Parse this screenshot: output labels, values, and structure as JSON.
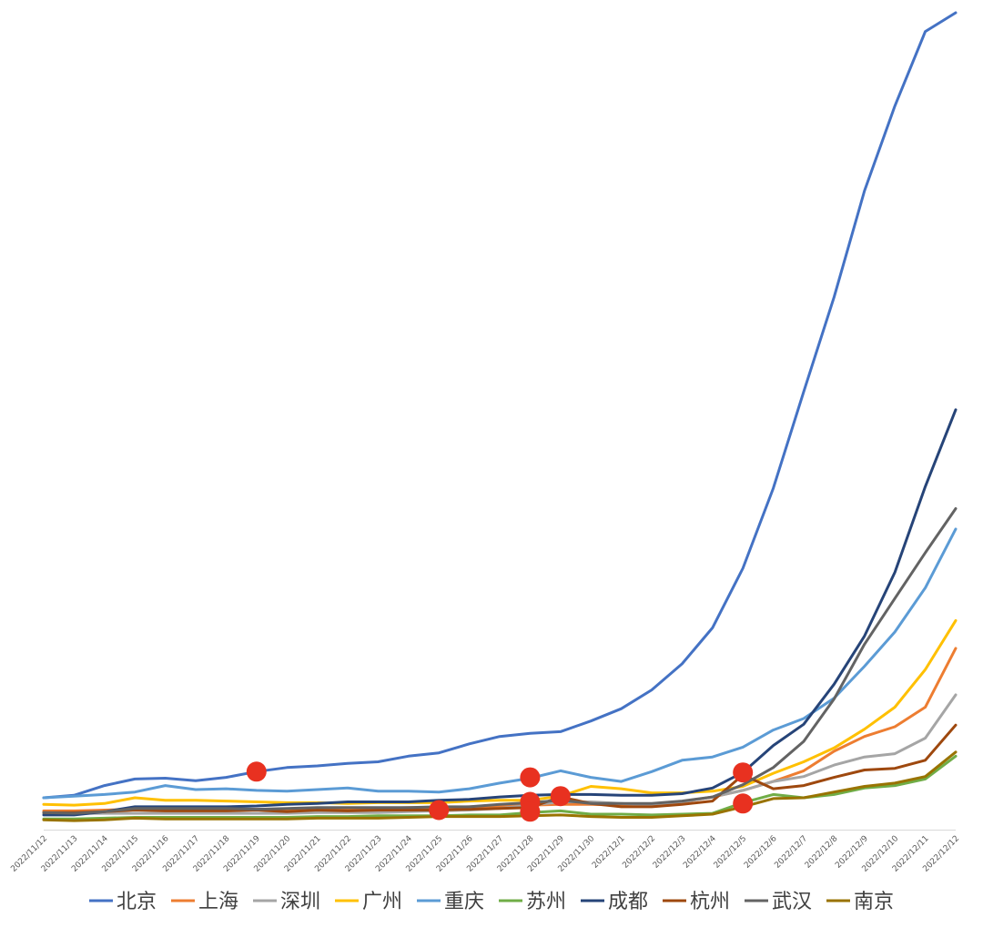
{
  "chart_data": {
    "type": "line",
    "title": "",
    "xlabel": "",
    "ylabel": "",
    "y_axis_visible": false,
    "grid": false,
    "legend_position": "bottom",
    "categories": [
      "2022/11/12",
      "2022/11/13",
      "2022/11/14",
      "2022/11/15",
      "2022/11/16",
      "2022/11/17",
      "2022/11/18",
      "2022/11/19",
      "2022/11/20",
      "2022/11/21",
      "2022/11/22",
      "2022/11/23",
      "2022/11/24",
      "2022/11/25",
      "2022/11/26",
      "2022/11/27",
      "2022/11/28",
      "2022/11/29",
      "2022/11/30",
      "2022/12/1",
      "2022/12/2",
      "2022/12/3",
      "2022/12/4",
      "2022/12/5",
      "2022/12/6",
      "2022/12/7",
      "2022/12/8",
      "2022/12/9",
      "2022/12/10",
      "2022/12/11",
      "2022/12/12"
    ],
    "ylim": [
      0,
      100
    ],
    "series": [
      {
        "name": "北京",
        "color": "#4472C4",
        "values": [
          3.9,
          4.2,
          5.4,
          6.2,
          6.3,
          6.0,
          6.4,
          7.1,
          7.6,
          7.8,
          8.1,
          8.3,
          9.0,
          9.4,
          10.5,
          11.4,
          11.8,
          12.0,
          13.3,
          14.8,
          17.1,
          20.3,
          24.7,
          32.0,
          41.8,
          53.6,
          65.2,
          78.2,
          88.6,
          97.7,
          100.0
        ]
      },
      {
        "name": "上海",
        "color": "#ED7D31",
        "values": [
          2.3,
          2.3,
          2.4,
          2.5,
          2.5,
          2.5,
          2.5,
          2.5,
          2.5,
          2.6,
          2.6,
          2.6,
          2.7,
          2.7,
          2.8,
          2.9,
          3.0,
          3.1,
          3.1,
          3.0,
          3.0,
          3.4,
          4.0,
          4.8,
          5.9,
          7.2,
          9.6,
          11.4,
          12.6,
          15.0,
          22.2
        ]
      },
      {
        "name": "深圳",
        "color": "#A5A5A5",
        "values": [
          2.0,
          2.0,
          2.0,
          2.0,
          2.0,
          2.0,
          2.0,
          2.0,
          2.0,
          2.1,
          2.1,
          2.1,
          2.2,
          2.3,
          2.4,
          2.6,
          3.0,
          3.4,
          3.4,
          3.2,
          3.0,
          3.4,
          4.0,
          4.8,
          5.9,
          6.5,
          7.9,
          8.9,
          9.3,
          11.2,
          16.5
        ]
      },
      {
        "name": "广州",
        "color": "#FFC000",
        "values": [
          3.1,
          3.0,
          3.2,
          3.9,
          3.6,
          3.6,
          3.5,
          3.4,
          3.3,
          3.3,
          3.2,
          3.3,
          3.3,
          3.3,
          3.5,
          3.6,
          3.6,
          4.1,
          5.3,
          5.0,
          4.5,
          4.5,
          4.7,
          5.3,
          6.9,
          8.3,
          10.0,
          12.3,
          15.0,
          19.6,
          25.6
        ]
      },
      {
        "name": "重庆",
        "color": "#5B9BD5",
        "values": [
          3.9,
          4.1,
          4.3,
          4.6,
          5.4,
          4.9,
          5.0,
          4.8,
          4.7,
          4.9,
          5.1,
          4.7,
          4.7,
          4.6,
          5.0,
          5.7,
          6.3,
          7.2,
          6.4,
          5.9,
          7.1,
          8.5,
          8.9,
          10.1,
          12.2,
          13.6,
          16.1,
          20.0,
          24.2,
          29.6,
          36.8
        ]
      },
      {
        "name": "苏州",
        "color": "#70AD47",
        "values": [
          1.3,
          1.3,
          1.4,
          1.5,
          1.5,
          1.5,
          1.5,
          1.5,
          1.5,
          1.6,
          1.6,
          1.7,
          1.7,
          1.7,
          1.8,
          1.8,
          2.1,
          2.3,
          1.9,
          1.9,
          1.8,
          1.9,
          2.0,
          3.3,
          4.3,
          3.9,
          4.3,
          5.1,
          5.4,
          6.2,
          9.0
        ]
      },
      {
        "name": "成都",
        "color": "#264478",
        "values": [
          1.8,
          1.8,
          2.2,
          2.8,
          2.8,
          2.8,
          2.8,
          2.9,
          3.1,
          3.2,
          3.4,
          3.4,
          3.4,
          3.6,
          3.7,
          4.0,
          4.2,
          4.3,
          4.3,
          4.2,
          4.2,
          4.4,
          5.1,
          7.0,
          10.3,
          12.9,
          17.8,
          23.7,
          31.5,
          42.0,
          51.4
        ]
      },
      {
        "name": "杭州",
        "color": "#9E480E",
        "values": [
          2.1,
          2.1,
          2.2,
          2.4,
          2.3,
          2.3,
          2.3,
          2.4,
          2.2,
          2.4,
          2.3,
          2.4,
          2.4,
          2.4,
          2.5,
          2.6,
          2.7,
          4.0,
          3.2,
          2.8,
          2.8,
          3.1,
          3.5,
          6.7,
          5.0,
          5.4,
          6.4,
          7.3,
          7.5,
          8.5,
          12.8
        ]
      },
      {
        "name": "武汉",
        "color": "#636363",
        "values": [
          2.1,
          2.0,
          2.2,
          2.6,
          2.6,
          2.6,
          2.6,
          2.5,
          2.6,
          2.7,
          2.7,
          2.7,
          2.7,
          2.8,
          2.8,
          3.1,
          3.3,
          3.6,
          3.2,
          3.2,
          3.2,
          3.5,
          4.0,
          5.5,
          7.6,
          10.8,
          16.0,
          22.7,
          28.3,
          33.9,
          39.3
        ]
      },
      {
        "name": "南京",
        "color": "#997300",
        "values": [
          1.2,
          1.1,
          1.2,
          1.4,
          1.3,
          1.3,
          1.3,
          1.3,
          1.3,
          1.4,
          1.4,
          1.4,
          1.5,
          1.6,
          1.6,
          1.6,
          1.7,
          1.8,
          1.6,
          1.5,
          1.5,
          1.7,
          1.9,
          2.8,
          3.8,
          3.9,
          4.6,
          5.3,
          5.7,
          6.5,
          9.5
        ]
      }
    ],
    "markers": [
      {
        "label": "",
        "x": "2022/11/19",
        "y": 7.1,
        "color": "#E83120"
      },
      {
        "label": "",
        "x": "2022/11/25",
        "y": 2.4,
        "color": "#E83120"
      },
      {
        "label": "",
        "x": "2022/11/28",
        "y": 6.4,
        "color": "#E83120"
      },
      {
        "label": "",
        "x": "2022/11/28",
        "y": 3.4,
        "color": "#E83120"
      },
      {
        "label": "",
        "x": "2022/11/28",
        "y": 2.2,
        "color": "#E83120"
      },
      {
        "label": "",
        "x": "2022/11/29",
        "y": 4.1,
        "color": "#E83120"
      },
      {
        "label": "",
        "x": "2022/12/5",
        "y": 7.0,
        "color": "#E83120"
      },
      {
        "label": "",
        "x": "2022/12/5",
        "y": 3.2,
        "color": "#E83120"
      }
    ]
  }
}
